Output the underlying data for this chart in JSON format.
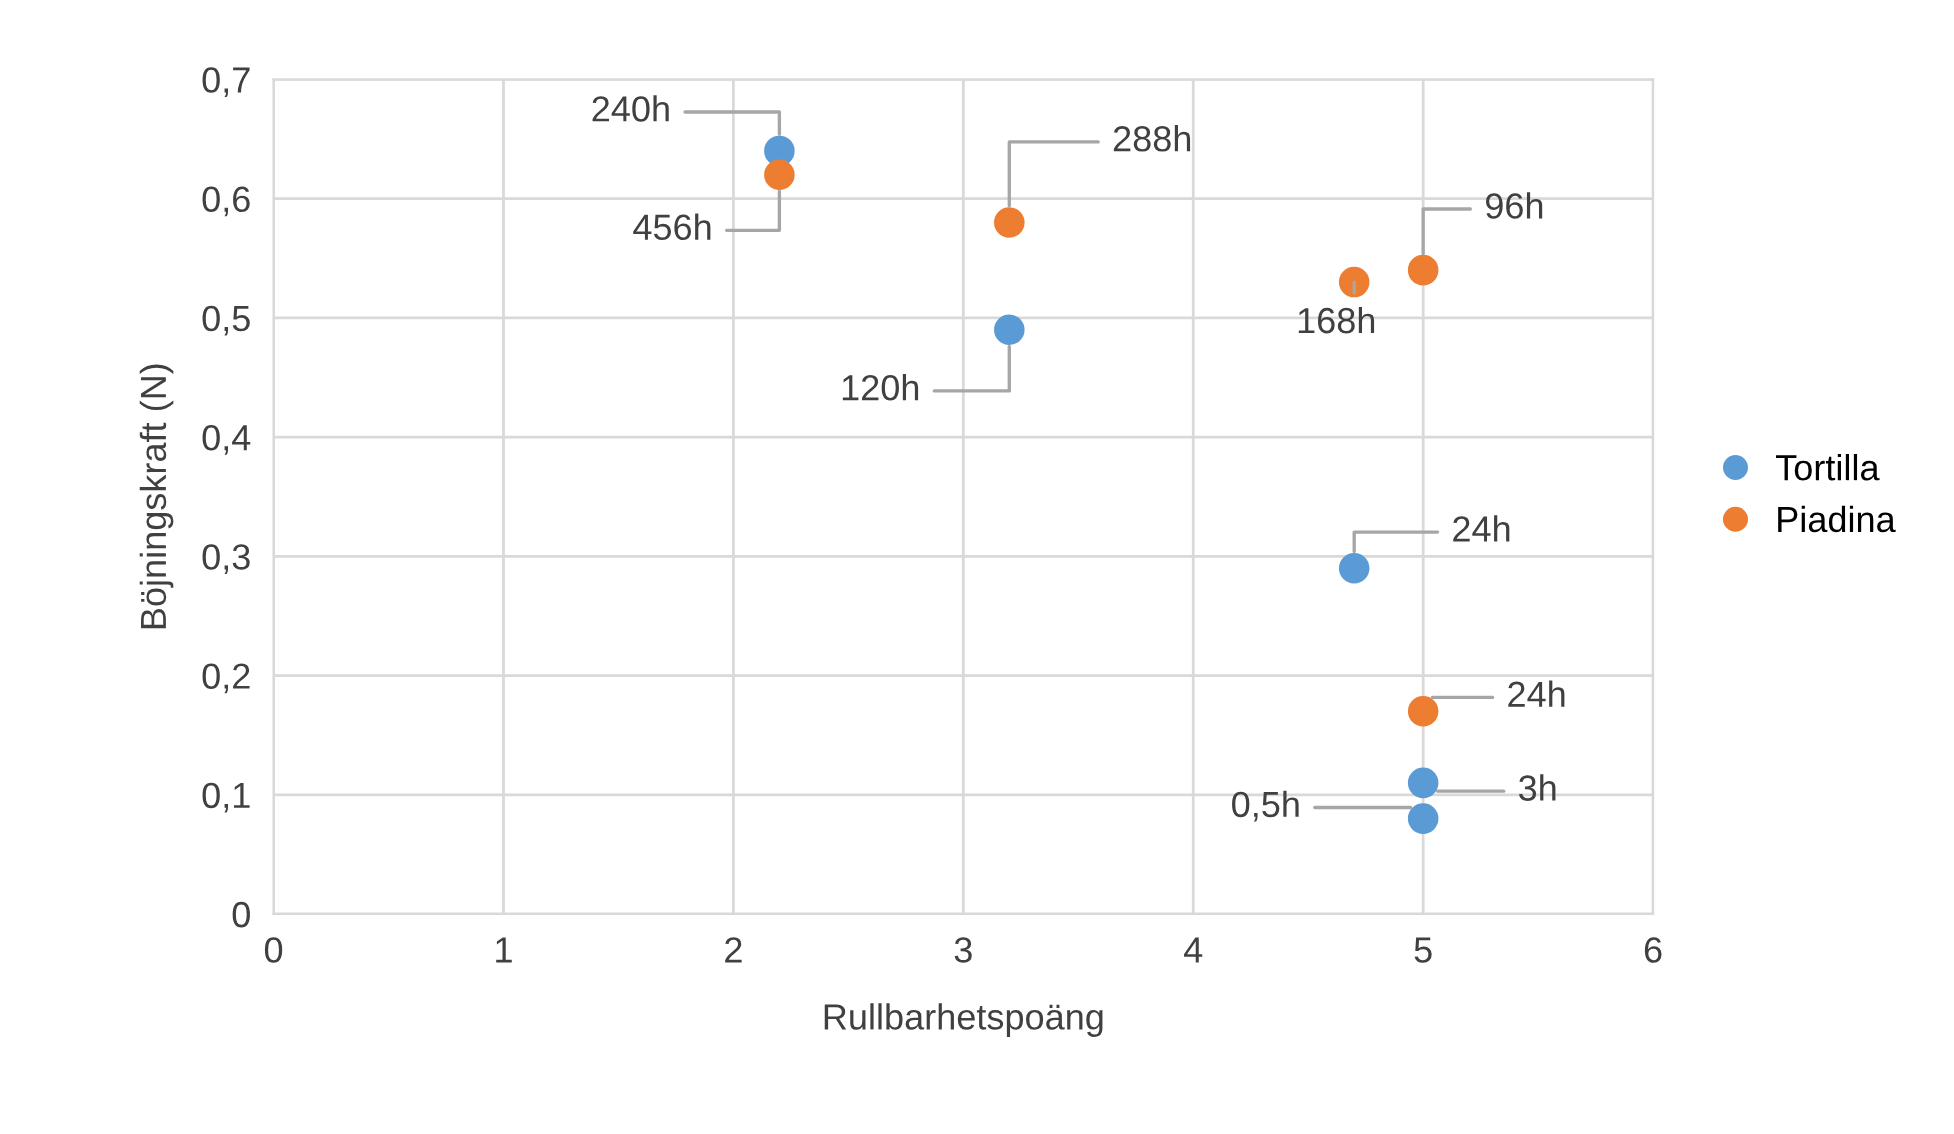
{
  "chart_data": {
    "type": "scatter",
    "xlabel": "Rullbarhetspoäng",
    "ylabel": "Böjningskraft (N)",
    "series": [
      {
        "name": "Tortilla",
        "color": "#5b9bd5",
        "x": [
          2.2,
          3.2,
          4.7,
          5,
          5
        ],
        "values": [
          0.64,
          0.49,
          0.29,
          0.11,
          0.08
        ]
      },
      {
        "name": "Piadina",
        "color": "#ed7d31",
        "x": [
          2.2,
          3.2,
          4.7,
          5,
          5
        ],
        "values": [
          0.62,
          0.58,
          0.53,
          0.54,
          0.17
        ]
      }
    ],
    "annotations": [
      {
        "text": "240h",
        "x": 2.2,
        "y": 0.64
      },
      {
        "text": "120h",
        "x": 3.2,
        "y": 0.49
      },
      {
        "text": "24h",
        "x": 4.7,
        "y": 0.29
      },
      {
        "text": "3h",
        "x": 5,
        "y": 0.11
      },
      {
        "text": "0,5h",
        "x": 5,
        "y": 0.08
      },
      {
        "text": "456h",
        "x": 2.2,
        "y": 0.62
      },
      {
        "text": "288h",
        "x": 3.2,
        "y": 0.58
      },
      {
        "text": "168h",
        "x": 4.7,
        "y": 0.53
      },
      {
        "text": "96h",
        "x": 5,
        "y": 0.54
      },
      {
        "text": "24h",
        "x": 5,
        "y": 0.17
      }
    ],
    "xlim": [
      0,
      6
    ],
    "xticks": [
      0,
      1,
      2,
      3,
      4,
      5,
      6
    ],
    "ylim": [
      0,
      0.7
    ],
    "yticks": [
      0,
      {
        "value": 0.1,
        "label": "0,1"
      },
      {
        "value": 0.2,
        "label": "0,2"
      },
      {
        "value": 0.3,
        "label": "0,3"
      },
      {
        "value": 0.4,
        "label": "0,4"
      },
      {
        "value": 0.5,
        "label": "0,5"
      },
      {
        "value": 0.6,
        "label": "0,6"
      },
      {
        "value": 0.7,
        "label": "0,7"
      }
    ],
    "grid": true,
    "legend": "right",
    "marker": "circle"
  }
}
